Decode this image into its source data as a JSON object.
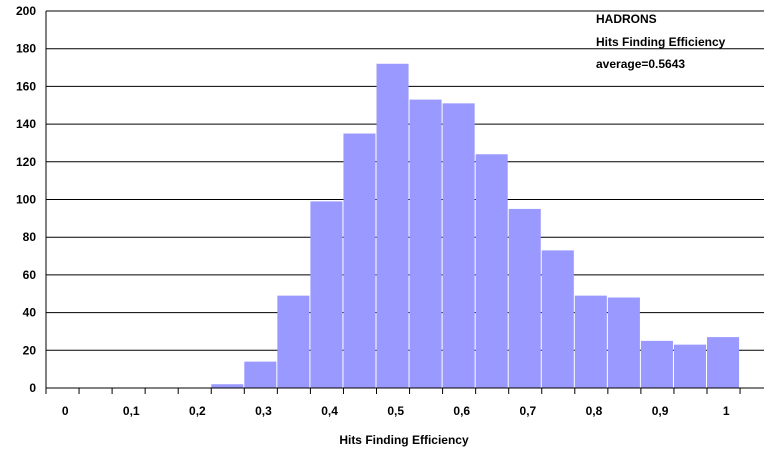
{
  "chart_data": {
    "type": "bar",
    "title": "",
    "xlabel": "Hits Finding Efficiency",
    "ylabel": "",
    "ylim": [
      0,
      200
    ],
    "y_ticks": [
      "0",
      "20",
      "40",
      "60",
      "80",
      "100",
      "120",
      "140",
      "160",
      "180",
      "200"
    ],
    "x_ticks": [
      "0",
      "0,1",
      "0,2",
      "0,3",
      "0,4",
      "0,5",
      "0,6",
      "0,7",
      "0,8",
      "0,9",
      "1"
    ],
    "grid": true,
    "bar_color": "#9999ff",
    "bins": [
      0,
      0.05,
      0.1,
      0.15,
      0.2,
      0.25,
      0.3,
      0.35,
      0.4,
      0.45,
      0.5,
      0.55,
      0.6,
      0.65,
      0.7,
      0.75,
      0.8,
      0.85,
      0.9,
      0.95,
      1.0
    ],
    "values": [
      0,
      0,
      0,
      0,
      0,
      2,
      14,
      49,
      99,
      135,
      172,
      153,
      151,
      124,
      95,
      73,
      49,
      48,
      25,
      23,
      27
    ],
    "annotation": [
      "HADRONS",
      "Hits Finding Efficiency",
      "average=0.5643"
    ]
  }
}
